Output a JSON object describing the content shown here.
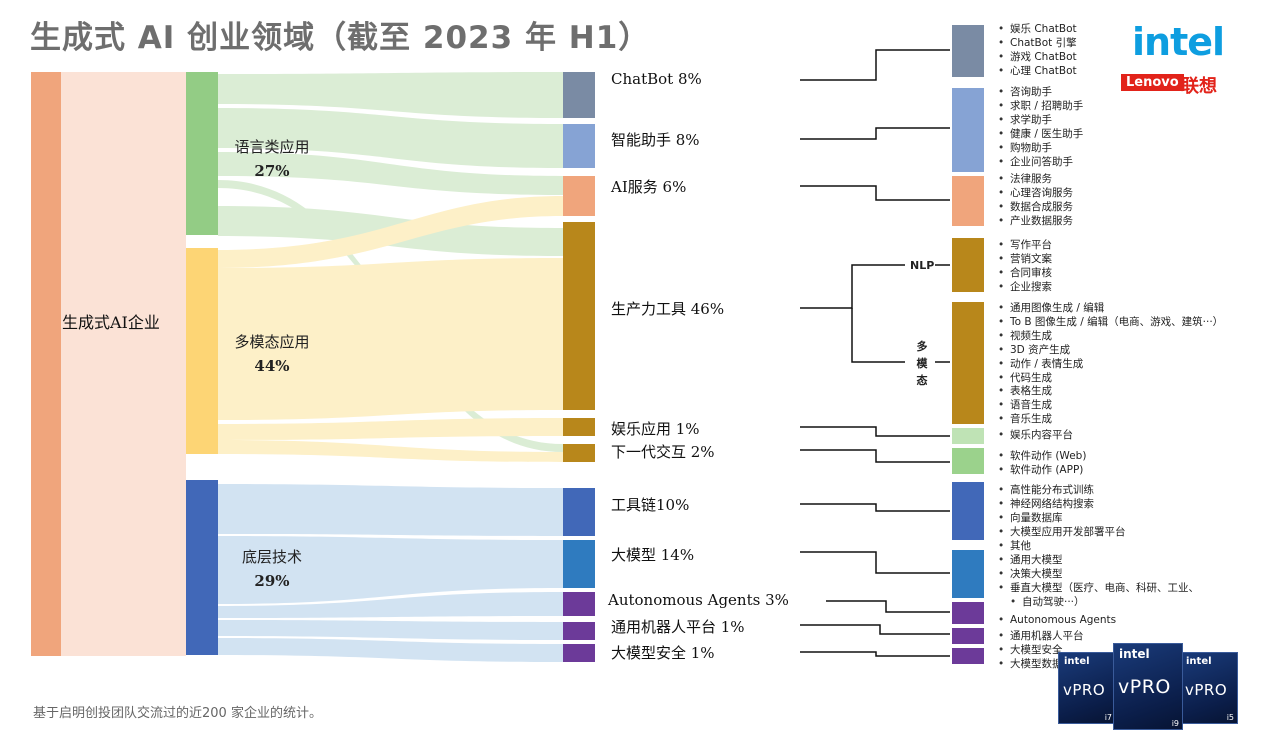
{
  "title": "生成式 AI 创业领域（截至 2023 年 H1）",
  "footnote": "基于启明创投团队交流过的近200 家企业的统计。",
  "colors": {
    "root": "#f0a57c",
    "root_band": "#fbe2d6",
    "language": "#93cc85",
    "language_band": "#dbedd5",
    "multimodal": "#fdd575",
    "multimodal_band": "#fdf0c8",
    "infra": "#4168b8",
    "infra_band": "#d2e3f2",
    "chatbot": "#7a8ba4",
    "assistant": "#86a3d4",
    "ai_service": "#f0a57c",
    "productivity": "#b8871b",
    "entertainment": "#bfe3b5",
    "next_interaction": "#9bd28c",
    "toolchain": "#4168b8",
    "model": "#2f7bbf",
    "agents": "#6c3a99",
    "robot": "#6c3a99",
    "safety": "#6c3a99"
  },
  "root_label": "生成式AI企业",
  "categories": [
    {
      "name": "语言类应用",
      "pct": "27%"
    },
    {
      "name": "多模态应用",
      "pct": "44%"
    },
    {
      "name": "底层技术",
      "pct": "29%"
    }
  ],
  "subcategories": [
    {
      "label": "ChatBot 8%"
    },
    {
      "label": "智能助手 8%"
    },
    {
      "label": "AI服务 6%"
    },
    {
      "label": "生产力工具 46%"
    },
    {
      "label": "娱乐应用 1%"
    },
    {
      "label": "下一代交互 2%"
    },
    {
      "label": "工具链10%"
    },
    {
      "label": "大模型 14%"
    },
    {
      "label": "Autonomous Agents 3%"
    },
    {
      "label": "通用机器人平台 1%"
    },
    {
      "label": "大模型安全 1%"
    }
  ],
  "productivity_branches": {
    "nlp": "NLP",
    "multimodal": "多模态"
  },
  "details": {
    "chatbot": [
      "娱乐 ChatBot",
      "ChatBot 引擎",
      "游戏 ChatBot",
      "心理 ChatBot"
    ],
    "assistant": [
      "咨询助手",
      "求职 / 招聘助手",
      "求学助手",
      "健康 / 医生助手",
      "购物助手",
      "企业问答助手"
    ],
    "ai_service": [
      "法律服务",
      "心理咨询服务",
      "数据合成服务",
      "产业数据服务"
    ],
    "nlp": [
      "写作平台",
      "营销文案",
      "合同审核",
      "企业搜索"
    ],
    "multimodal": [
      "通用图像生成 / 编辑",
      "To B 图像生成 / 编辑（电商、游戏、建筑···）",
      "视频生成",
      "3D 资产生成",
      "动作 / 表情生成",
      "代码生成",
      "表格生成",
      "语音生成",
      "音乐生成"
    ],
    "entertainment": [
      "娱乐内容平台"
    ],
    "next_interaction": [
      "软件动作 (Web)",
      "软件动作 (APP)"
    ],
    "toolchain": [
      "高性能分布式训练",
      "神经网络结构搜索",
      "向量数据库",
      "大模型应用开发部署平台",
      "其他"
    ],
    "model": [
      "通用大模型",
      "决策大模型",
      "垂直大模型（医疗、电商、科研、工业、",
      "自动驾驶···）"
    ],
    "agents": [
      "Autonomous Agents"
    ],
    "robot": [
      "通用机器人平台"
    ],
    "safety": [
      "大模型安全",
      "大模型数据"
    ]
  },
  "logos": {
    "intel": "intel",
    "lenovo_en": "Lenovo",
    "lenovo_cn": "联想"
  },
  "badges": [
    {
      "brand": "intel",
      "text": "vPRO",
      "tier": "i7"
    },
    {
      "brand": "intel",
      "text": "vPRO",
      "tier": "i9"
    },
    {
      "brand": "intel",
      "text": "vPRO",
      "tier": "i5"
    }
  ]
}
